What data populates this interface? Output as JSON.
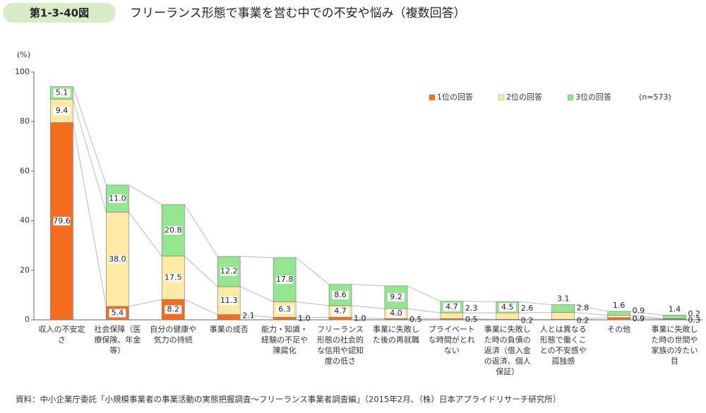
{
  "figure_number": "第1-3-40図",
  "chart_data": {
    "type": "stacked_bar",
    "title": "フリーランス形態で事業を営む中での不安や悩み（複数回答）",
    "y_unit": "(%)",
    "note": "(n=573)",
    "source": "資料：中小企業庁委託「小規模事業者の事業活動の実態把握調査～フリーランス事業者調査編」（2015年2月、（株）日本アプライドリサーチ研究所）",
    "categories": [
      "収入の不安定さ",
      "社会保障（医療保険、年金等）",
      "自分の健康や気力の持続",
      "事業の成否",
      "能力・知識・経験の不足や陳腐化",
      "フリーランス形態の社会的な信用や認知度の低さ",
      "事業に失敗した後の再就職",
      "プライベートな時間がとれない",
      "事業に失敗した時の負債の返済（借入金の返済、個人保証）",
      "人とは異なる形態で働くことの不安感や孤独感",
      "その他",
      "事業に失敗した時の世間や家族の冷たい目"
    ],
    "series": [
      {
        "name": "1位の回答",
        "color": "#f36c1f",
        "values": [
          79.6,
          5.4,
          8.2,
          2.1,
          1.0,
          1.0,
          0.5,
          0.5,
          0.2,
          0.2,
          0.9,
          0.3
        ],
        "value_labels": [
          "79.6",
          "5.4",
          "8.2",
          "2.1",
          "1.0",
          "1.0",
          "0.5",
          "0.5",
          "0.2",
          "0.2",
          "0.9",
          "0.3"
        ]
      },
      {
        "name": "2位の回答",
        "color": "#fde9a4",
        "values": [
          9.4,
          38.0,
          17.5,
          11.3,
          6.3,
          4.7,
          4.0,
          2.3,
          2.6,
          2.8,
          0.9,
          0.2
        ],
        "value_labels": [
          "9.4",
          "38.0",
          "17.5",
          "11.3",
          "6.3",
          "4.7",
          "4.0",
          "2.3",
          "2.6",
          "2.8",
          "0.9",
          "0.2"
        ]
      },
      {
        "name": "3位の回答",
        "color": "#93e590",
        "values": [
          5.1,
          11.0,
          20.8,
          12.2,
          17.8,
          8.6,
          9.2,
          4.7,
          4.5,
          3.1,
          1.6,
          1.4
        ],
        "value_labels": [
          "5.1",
          "11.0",
          "20.8",
          "12.2",
          "17.8",
          "8.6",
          "9.2",
          "4.7",
          "4.5",
          "3.1",
          "1.6",
          "1.4"
        ]
      }
    ],
    "ylim": [
      0,
      100
    ],
    "yticks": [
      0,
      20,
      40,
      60,
      80,
      100
    ]
  }
}
